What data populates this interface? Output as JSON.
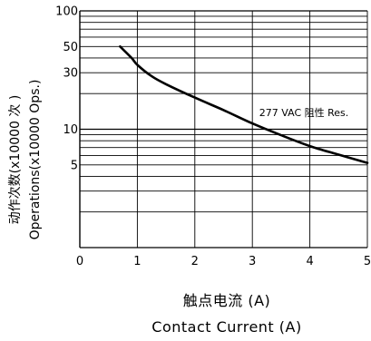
{
  "chart_data": {
    "type": "line",
    "title": "",
    "xlabel_cn": "触点电流 (A)",
    "xlabel_en": "Contact Current (A)",
    "ylabel_cn": "动作次数(x10000 次 )",
    "ylabel_en": "Operations(x10000 Ops.)",
    "x_ticks": [
      "0",
      "1",
      "2",
      "3",
      "4",
      "5"
    ],
    "y_ticks": [
      "100",
      "50",
      "30",
      "10",
      "5"
    ],
    "y_tick_values": [
      100,
      50,
      30,
      10,
      5
    ],
    "xlim": [
      0,
      5
    ],
    "ylim": [
      1,
      100
    ],
    "y_scale": "log",
    "grid": true,
    "series": [
      {
        "name": "277 VAC 阻性 Res.",
        "x": [
          0.7,
          0.9,
          1.0,
          1.25,
          1.5,
          2.0,
          2.5,
          3.0,
          3.5,
          4.0,
          4.5,
          5.0
        ],
        "y": [
          50,
          40,
          35,
          28,
          24,
          18.5,
          14.5,
          11.2,
          8.9,
          7.2,
          6.1,
          5.2
        ]
      }
    ],
    "annotations": [
      {
        "text": "277 VAC 阻性 Res.",
        "x": 4.2,
        "y": 12.5
      }
    ],
    "colors": {
      "line": "#000000",
      "grid": "#000000"
    }
  }
}
